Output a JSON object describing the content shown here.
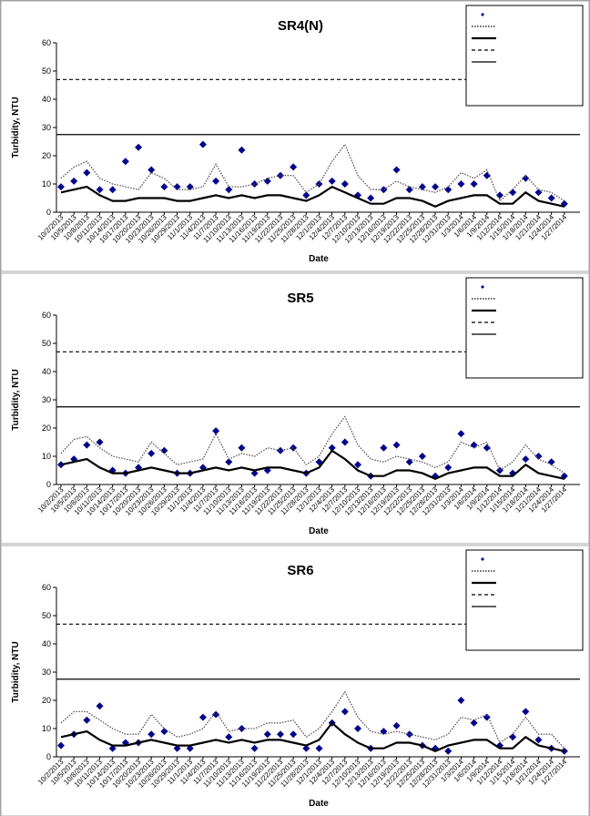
{
  "chart_data": [
    {
      "type": "line",
      "title": "SR4(N)",
      "x_label": "Date",
      "y_label": "Turbidity, NTU",
      "categories": [
        "10/2/2013",
        "10/5/2013",
        "10/8/2013",
        "10/11/2013",
        "10/14/2013",
        "10/17/2013",
        "10/20/2013",
        "10/23/2013",
        "10/26/2013",
        "10/29/2013",
        "11/1/2013",
        "11/4/2013",
        "11/7/2013",
        "11/10/2013",
        "11/13/2013",
        "11/16/2013",
        "11/19/2013",
        "11/22/2013",
        "11/25/2013",
        "11/28/2013",
        "12/1/2013",
        "12/4/2013",
        "12/7/2013",
        "12/10/2013",
        "12/13/2013",
        "12/16/2013",
        "12/19/2013",
        "12/22/2013",
        "12/25/2013",
        "12/28/2013",
        "12/31/2013",
        "1/3/2014",
        "1/6/2014",
        "1/9/2014",
        "1/12/2014",
        "1/15/2014",
        "1/18/2014",
        "1/21/2014",
        "1/24/2014",
        "1/27/2014"
      ],
      "ylim": [
        0,
        60
      ],
      "yticks": [
        0,
        10,
        20,
        30,
        40,
        50,
        60
      ],
      "reference_lines": [
        {
          "value": 47,
          "style": "dashed"
        },
        {
          "value": 27.5,
          "style": "solid"
        }
      ],
      "series": [
        {
          "style": "diamond",
          "color": "#00008b",
          "values": [
            9,
            11,
            14,
            8,
            8,
            18,
            23,
            15,
            9,
            9,
            9,
            24,
            11,
            8,
            22,
            10,
            11,
            13,
            16,
            6,
            10,
            11,
            10,
            6,
            5,
            8,
            15,
            8,
            9,
            9,
            8,
            10,
            10,
            13,
            6,
            7,
            12,
            7,
            5,
            3
          ]
        },
        {
          "style": "dotted",
          "color": "#555555",
          "values": [
            12,
            16,
            18,
            12,
            10,
            9,
            8,
            14,
            12,
            8,
            8,
            9,
            17,
            9,
            9,
            10,
            12,
            13,
            13,
            7,
            10,
            18,
            24,
            13,
            8,
            8,
            11,
            9,
            8,
            7,
            9,
            14,
            12,
            15,
            4,
            8,
            13,
            8,
            7,
            4
          ]
        },
        {
          "style": "thick",
          "color": "#000000",
          "values": [
            7,
            8,
            9,
            6,
            4,
            4,
            5,
            5,
            5,
            4,
            4,
            5,
            6,
            5,
            6,
            5,
            6,
            6,
            5,
            4,
            6,
            9,
            7,
            5,
            3,
            3,
            5,
            5,
            4,
            2,
            4,
            5,
            6,
            6,
            3,
            3,
            7,
            4,
            3,
            2
          ]
        }
      ]
    },
    {
      "type": "line",
      "title": "SR5",
      "x_label": "Date",
      "y_label": "Turbidity, NTU",
      "categories": [
        "10/2/2013",
        "10/5/2013",
        "10/8/2013",
        "10/11/2013",
        "10/14/2013",
        "10/17/2013",
        "10/20/2013",
        "10/23/2013",
        "10/26/2013",
        "10/29/2013",
        "11/1/2013",
        "11/4/2013",
        "11/7/2013",
        "11/10/2013",
        "11/13/2013",
        "11/16/2013",
        "11/19/2013",
        "11/22/2013",
        "11/25/2013",
        "11/28/2013",
        "12/1/2013",
        "12/4/2013",
        "12/7/2013",
        "12/10/2013",
        "12/13/2013",
        "12/16/2013",
        "12/19/2013",
        "12/22/2013",
        "12/25/2013",
        "12/28/2013",
        "12/31/2013",
        "1/3/2014",
        "1/6/2014",
        "1/9/2014",
        "1/12/2014",
        "1/15/2014",
        "1/18/2014",
        "1/21/2014",
        "1/24/2014",
        "1/27/2014"
      ],
      "ylim": [
        0,
        60
      ],
      "yticks": [
        0,
        10,
        20,
        30,
        40,
        50,
        60
      ],
      "reference_lines": [
        {
          "value": 47,
          "style": "dashed"
        },
        {
          "value": 27.5,
          "style": "solid"
        }
      ],
      "series": [
        {
          "style": "diamond",
          "color": "#00008b",
          "values": [
            7,
            9,
            14,
            15,
            5,
            4,
            6,
            11,
            12,
            4,
            4,
            6,
            19,
            8,
            13,
            4,
            5,
            12,
            13,
            4,
            8,
            13,
            15,
            7,
            3,
            13,
            14,
            8,
            10,
            3,
            6,
            18,
            14,
            13,
            5,
            4,
            9,
            10,
            8,
            3
          ]
        },
        {
          "style": "dotted",
          "color": "#555555",
          "values": [
            11,
            16,
            17,
            13,
            10,
            9,
            8,
            15,
            11,
            7,
            8,
            9,
            18,
            9,
            11,
            10,
            13,
            12,
            13,
            7,
            10,
            18,
            24,
            14,
            9,
            8,
            10,
            9,
            8,
            6,
            8,
            15,
            13,
            15,
            5,
            8,
            14,
            9,
            7,
            4
          ]
        },
        {
          "style": "thick",
          "color": "#000000",
          "values": [
            7,
            8,
            9,
            6,
            4,
            4,
            5,
            6,
            5,
            4,
            4,
            5,
            6,
            5,
            6,
            5,
            6,
            6,
            5,
            4,
            6,
            12,
            9,
            5,
            3,
            3,
            5,
            5,
            4,
            2,
            4,
            5,
            6,
            6,
            3,
            3,
            7,
            4,
            3,
            2
          ]
        }
      ]
    },
    {
      "type": "line",
      "title": "SR6",
      "x_label": "Date",
      "y_label": "Turbidity, NTU",
      "categories": [
        "10/2/2013",
        "10/5/2013",
        "10/8/2013",
        "10/11/2013",
        "10/14/2013",
        "10/17/2013",
        "10/20/2013",
        "10/23/2013",
        "10/26/2013",
        "10/29/2013",
        "11/1/2013",
        "11/4/2013",
        "11/7/2013",
        "11/10/2013",
        "11/13/2013",
        "11/16/2013",
        "11/19/2013",
        "11/22/2013",
        "11/25/2013",
        "11/28/2013",
        "12/1/2013",
        "12/4/2013",
        "12/7/2013",
        "12/10/2013",
        "12/13/2013",
        "12/16/2013",
        "12/19/2013",
        "12/22/2013",
        "12/25/2013",
        "12/28/2013",
        "12/31/2013",
        "1/3/2014",
        "1/6/2014",
        "1/9/2014",
        "1/12/2014",
        "1/15/2014",
        "1/18/2014",
        "1/21/2014",
        "1/24/2014",
        "1/27/2014"
      ],
      "ylim": [
        0,
        60
      ],
      "yticks": [
        0,
        10,
        20,
        30,
        40,
        50,
        60
      ],
      "reference_lines": [
        {
          "value": 47,
          "style": "dashed"
        },
        {
          "value": 27.5,
          "style": "solid"
        }
      ],
      "series": [
        {
          "style": "diamond",
          "color": "#00008b",
          "values": [
            4,
            8,
            13,
            18,
            3,
            5,
            5,
            8,
            9,
            3,
            3,
            14,
            15,
            7,
            10,
            3,
            8,
            8,
            8,
            3,
            3,
            12,
            16,
            10,
            3,
            9,
            11,
            8,
            4,
            3,
            2,
            20,
            12,
            14,
            4,
            7,
            16,
            6,
            3,
            2
          ]
        },
        {
          "style": "dotted",
          "color": "#555555",
          "values": [
            12,
            16,
            16,
            13,
            10,
            8,
            8,
            15,
            10,
            7,
            8,
            10,
            16,
            9,
            10,
            10,
            12,
            12,
            13,
            7,
            10,
            16,
            23,
            14,
            9,
            8,
            9,
            8,
            7,
            6,
            8,
            14,
            13,
            15,
            5,
            8,
            14,
            8,
            8,
            3
          ]
        },
        {
          "style": "thick",
          "color": "#000000",
          "values": [
            7,
            8,
            9,
            6,
            4,
            4,
            5,
            6,
            5,
            4,
            4,
            5,
            6,
            5,
            6,
            5,
            6,
            6,
            5,
            4,
            6,
            12,
            8,
            5,
            3,
            3,
            5,
            5,
            4,
            2,
            4,
            5,
            6,
            6,
            3,
            3,
            7,
            4,
            3,
            2
          ]
        }
      ]
    }
  ]
}
